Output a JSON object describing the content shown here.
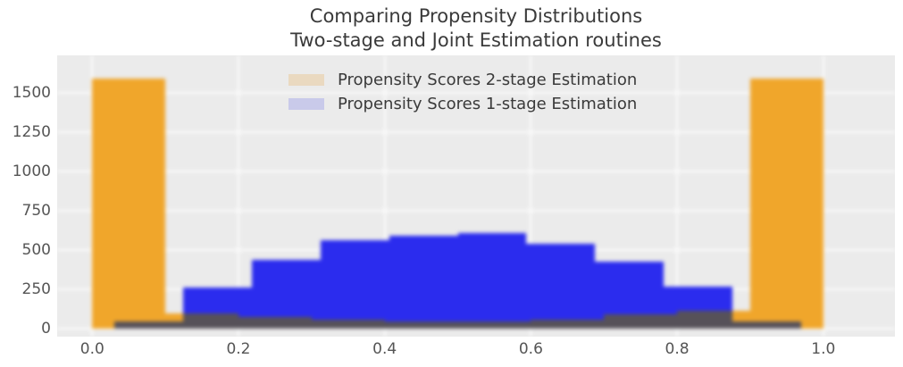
{
  "title": {
    "line1": "Comparing Propensity Distributions",
    "line2": "Two-stage and Joint Estimation routines"
  },
  "legend": {
    "items": [
      {
        "label": "Propensity Scores 2-stage Estimation",
        "swatch_color": "#ead9c0"
      },
      {
        "label": "Propensity Scores 1-stage Estimation",
        "swatch_color": "#c9caea"
      }
    ]
  },
  "chart_data": {
    "type": "bar",
    "subtype": "overlaid-histograms",
    "title": "Comparing Propensity Distributions",
    "subtitle": "Two-stage and Joint Estimation routines",
    "xlabel": "",
    "ylabel": "",
    "grid": true,
    "legend_position": "upper center",
    "plot_bg_color": "#ebebeb",
    "grid_color": "#ffffff",
    "overlap_color": "#565159",
    "xlim": [
      -0.048,
      1.05
    ],
    "ylim": [
      -51,
      1740
    ],
    "xticks": {
      "values": [
        0.0,
        0.2,
        0.4,
        0.6,
        0.8,
        1.0
      ],
      "labels": [
        "0.0",
        "0.2",
        "0.4",
        "0.6",
        "0.8",
        "1.0"
      ]
    },
    "yticks": {
      "values": [
        0,
        250,
        500,
        750,
        1000,
        1250,
        1500
      ],
      "labels": [
        "0",
        "250",
        "500",
        "750",
        "1000",
        "1250",
        "1500"
      ]
    },
    "series": [
      {
        "name": "Propensity Scores 2-stage Estimation",
        "color": "#f0a62b",
        "legend_swatch": "#ead9c0",
        "bin_edges": [
          0.0,
          0.1,
          0.2,
          0.3,
          0.4,
          0.5,
          0.6,
          0.7,
          0.8,
          0.9,
          1.0
        ],
        "counts": [
          1590,
          95,
          75,
          55,
          45,
          45,
          55,
          90,
          115,
          1590
        ]
      },
      {
        "name": "Propensity Scores 1-stage Estimation",
        "color": "#2b2cee",
        "legend_swatch": "#c9caea",
        "bin_edges": [
          0.03,
          0.124,
          0.218,
          0.312,
          0.406,
          0.5,
          0.594,
          0.688,
          0.782,
          0.876,
          0.97
        ],
        "counts": [
          45,
          260,
          440,
          565,
          590,
          610,
          540,
          425,
          270,
          45
        ]
      }
    ]
  }
}
